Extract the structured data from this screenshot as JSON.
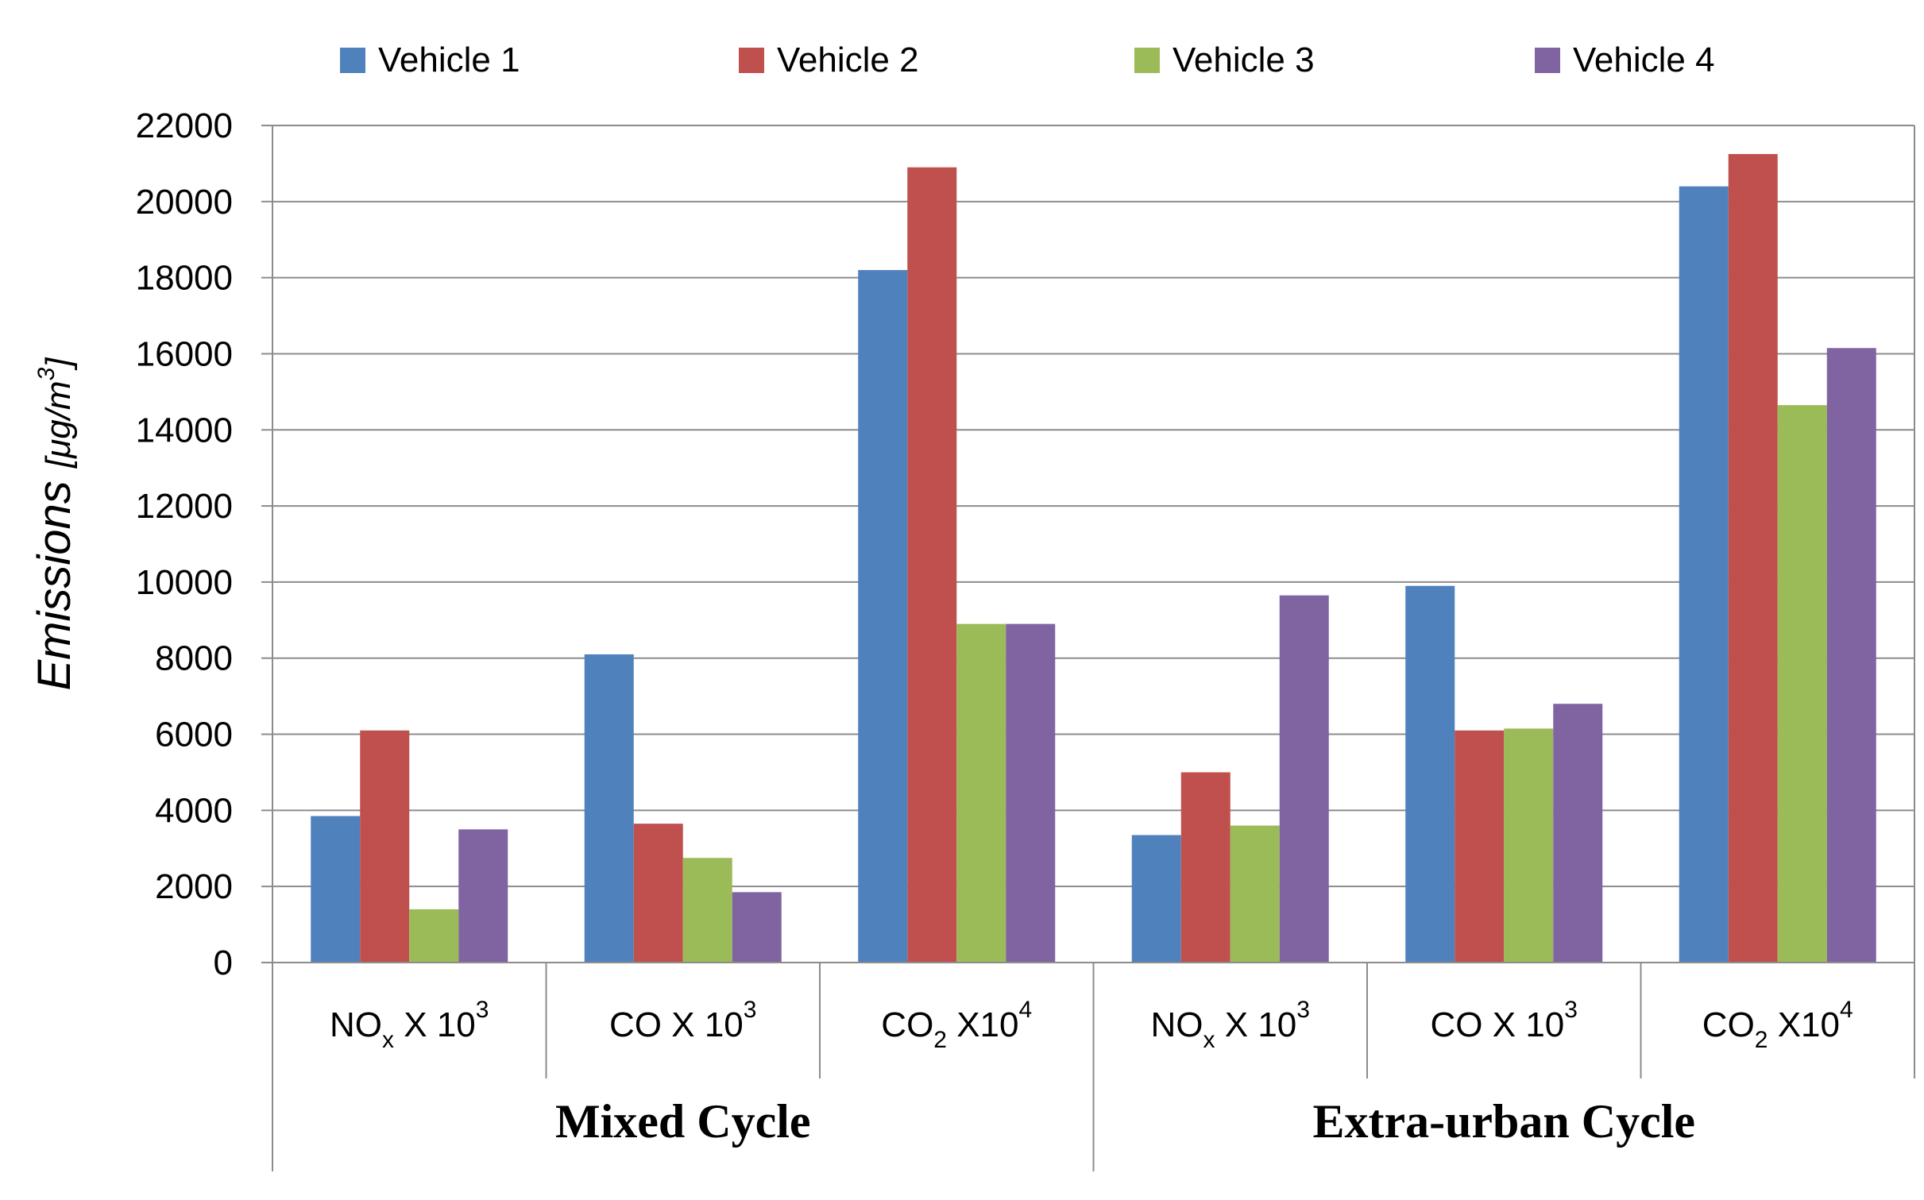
{
  "chart_data": {
    "type": "bar",
    "title": "",
    "xlabel": "",
    "ylabel": "Emissions [μg/m3]",
    "ylabel_parts": {
      "main": "Emissions",
      "unit_open": "[μg/m",
      "unit_sup": "3",
      "unit_close": "]"
    },
    "ylim": [
      0,
      22000
    ],
    "yticks": [
      0,
      2000,
      4000,
      6000,
      8000,
      10000,
      12000,
      14000,
      16000,
      18000,
      20000,
      22000
    ],
    "grid": true,
    "legend_position": "top",
    "categories": [
      {
        "label": "NOx X 10^3",
        "base": "NO",
        "sub": "x",
        "mid": " X 10",
        "sup": "3"
      },
      {
        "label": "CO X 10^3",
        "base": "CO X 10",
        "sub": "",
        "mid": "",
        "sup": "3"
      },
      {
        "label": "CO2 X10^4",
        "base": "CO",
        "sub": "2",
        "mid": "  X10",
        "sup": "4"
      },
      {
        "label": "NOx X 10^3",
        "base": "NO",
        "sub": "x",
        "mid": " X 10",
        "sup": "3"
      },
      {
        "label": "CO X 10^3",
        "base": "CO X 10",
        "sub": "",
        "mid": "",
        "sup": "3"
      },
      {
        "label": "CO2 X10^4",
        "base": "CO",
        "sub": "2",
        "mid": "  X10",
        "sup": "4"
      }
    ],
    "groups": [
      {
        "label": "Mixed Cycle",
        "span": [
          0,
          2
        ]
      },
      {
        "label": "Extra-urban Cycle",
        "span": [
          3,
          5
        ]
      }
    ],
    "series": [
      {
        "name": "Vehicle 1",
        "color": "#4F81BD",
        "values": [
          3850,
          8100,
          18200,
          3350,
          9900,
          20400
        ]
      },
      {
        "name": "Vehicle 2",
        "color": "#C0504D",
        "values": [
          6100,
          3650,
          20900,
          5000,
          6100,
          21250
        ]
      },
      {
        "name": "Vehicle 3",
        "color": "#9BBB59",
        "values": [
          1400,
          2750,
          8900,
          3600,
          6150,
          14650
        ]
      },
      {
        "name": "Vehicle 4",
        "color": "#8064A2",
        "values": [
          3500,
          1850,
          8900,
          9650,
          6800,
          16150
        ]
      }
    ]
  }
}
